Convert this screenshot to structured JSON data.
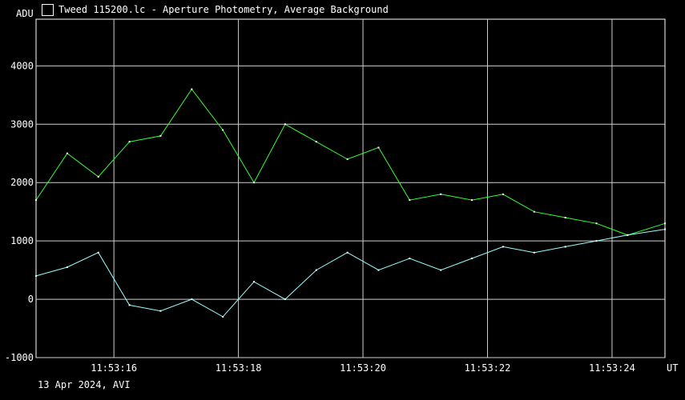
{
  "window": {
    "title": "Tweed 115200.lc - Aperture Photometry, Average Background",
    "footer": "13 Apr 2024, AVI"
  },
  "chart_data": {
    "type": "line",
    "ylabel": "ADU",
    "xunit": "UT",
    "ylim": [
      -1000,
      4800
    ],
    "xlim": [
      "11:53:14.75",
      "11:53:24.85"
    ],
    "yticks": [
      -1000,
      0,
      1000,
      2000,
      3000,
      4000
    ],
    "xticks": [
      "11:53:16",
      "11:53:18",
      "11:53:20",
      "11:53:22",
      "11:53:24"
    ],
    "grid": true,
    "series": [
      {
        "color": "#33ff33",
        "x": [
          "11:53:14.75",
          "11:53:15.25",
          "11:53:15.75",
          "11:53:16.25",
          "11:53:16.75",
          "11:53:17.25",
          "11:53:17.75",
          "11:53:18.25",
          "11:53:18.75",
          "11:53:19.25",
          "11:53:19.75",
          "11:53:20.25",
          "11:53:20.75",
          "11:53:21.25",
          "11:53:21.75",
          "11:53:22.25",
          "11:53:22.75",
          "11:53:23.25",
          "11:53:23.75",
          "11:53:24.25",
          "11:53:24.85"
        ],
        "values": [
          1700,
          2500,
          2100,
          2700,
          2800,
          3600,
          2900,
          2000,
          3000,
          2700,
          2400,
          2600,
          1700,
          1800,
          1700,
          1800,
          1500,
          1400,
          1300,
          1100,
          1300
        ]
      },
      {
        "color": "#99ffff",
        "x": [
          "11:53:14.75",
          "11:53:15.25",
          "11:53:15.75",
          "11:53:16.25",
          "11:53:16.75",
          "11:53:17.25",
          "11:53:17.75",
          "11:53:18.25",
          "11:53:18.75",
          "11:53:19.25",
          "11:53:19.75",
          "11:53:20.25",
          "11:53:20.75",
          "11:53:21.25",
          "11:53:21.75",
          "11:53:22.25",
          "11:53:22.75",
          "11:53:23.25",
          "11:53:23.75",
          "11:53:24.25",
          "11:53:24.85"
        ],
        "values": [
          400,
          550,
          800,
          -100,
          -200,
          0,
          -300,
          300,
          0,
          500,
          800,
          500,
          700,
          500,
          700,
          900,
          800,
          900,
          1000,
          1100,
          1200
        ]
      }
    ]
  }
}
